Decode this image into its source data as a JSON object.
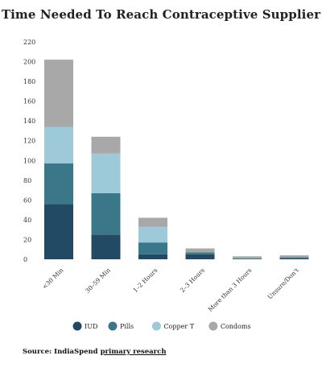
{
  "chart_data": {
    "type": "bar",
    "stacked": true,
    "title": "Time Needed To Reach Contraceptive Supplier",
    "categories": [
      "<30 Min",
      "30–59 Min",
      "1–2 Hours",
      "2–3 Hours",
      "More than 3 Hours",
      "Unsure/Don't"
    ],
    "series": [
      {
        "name": "IUD",
        "color": "#234a65",
        "values": [
          56,
          25,
          5,
          5,
          0,
          1
        ]
      },
      {
        "name": "Pills",
        "color": "#3a7788",
        "values": [
          41,
          42,
          12,
          2,
          1,
          1
        ]
      },
      {
        "name": "Copper T",
        "color": "#9ec9d8",
        "values": [
          37,
          40,
          16,
          0,
          0,
          0
        ]
      },
      {
        "name": "Condoms",
        "color": "#a8a8a8",
        "values": [
          68,
          17,
          9,
          4,
          2,
          2
        ]
      }
    ],
    "y_ticks": [
      "220",
      "200",
      "180",
      "160",
      "140",
      "120",
      "100",
      "80",
      "60",
      "40",
      "20",
      "0"
    ],
    "ylim": [
      0,
      220
    ],
    "grid": false,
    "legend_position": "bottom"
  },
  "source": {
    "prefix": "Source: IndiaSpend ",
    "link_text": "primary research"
  }
}
